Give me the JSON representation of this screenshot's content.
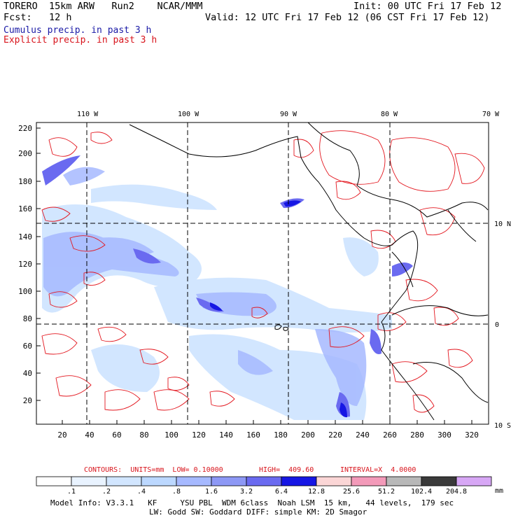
{
  "header": {
    "model": "TORERO  15km ARW   Run2    NCAR/MMM",
    "init": "Init: 00 UTC Fri 17 Feb 12",
    "fcst": "Fcst:   12 h",
    "valid": "Valid: 12 UTC Fri 17 Feb 12 (06 CST Fri 17 Feb 12)",
    "field1": "Cumulus precip. in past 3 h",
    "field2": "Explicit precip. in past 3 h"
  },
  "map": {
    "lon_labels": [
      "110 W",
      "100 W",
      "90 W",
      "80 W",
      "70 W"
    ],
    "lat_labels": [
      "10 N",
      "0",
      "10 S"
    ],
    "y_ticks": [
      "220",
      "200",
      "180",
      "160",
      "140",
      "120",
      "100",
      "80",
      "60",
      "40",
      "20"
    ],
    "x_ticks": [
      "20",
      "40",
      "60",
      "80",
      "100",
      "120",
      "140",
      "160",
      "180",
      "200",
      "220",
      "240",
      "260",
      "280",
      "300",
      "320"
    ]
  },
  "contours": {
    "units": "CONTOURS:  UNITS=mm  LOW= 0.10000",
    "high": "HIGH=  409.60",
    "interval": "INTERVAL=X  4.0000"
  },
  "colorbar": {
    "labels": [
      ".1",
      ".2",
      ".4",
      ".8",
      "1.6",
      "3.2",
      "6.4",
      "12.8",
      "25.6",
      "51.2",
      "102.4",
      "204.8"
    ],
    "unit": "mm",
    "colors": [
      "#ffffff",
      "#e9f3ff",
      "#d2e6ff",
      "#bcd8ff",
      "#a6b9ff",
      "#8d98f5",
      "#6a6af0",
      "#1616e4",
      "#fbd6d6",
      "#f39ab9",
      "#b8b8b8",
      "#3a3a3a",
      "#d7a7f5"
    ]
  },
  "footer": {
    "line1": "Model Info: V3.3.1   KF     YSU PBL  WDM 6class  Noah LSM  15 km,   44 levels,  179 sec",
    "line2": "LW: Godd SW: Goddard DIFF: simple KM: 2D Smagor"
  }
}
